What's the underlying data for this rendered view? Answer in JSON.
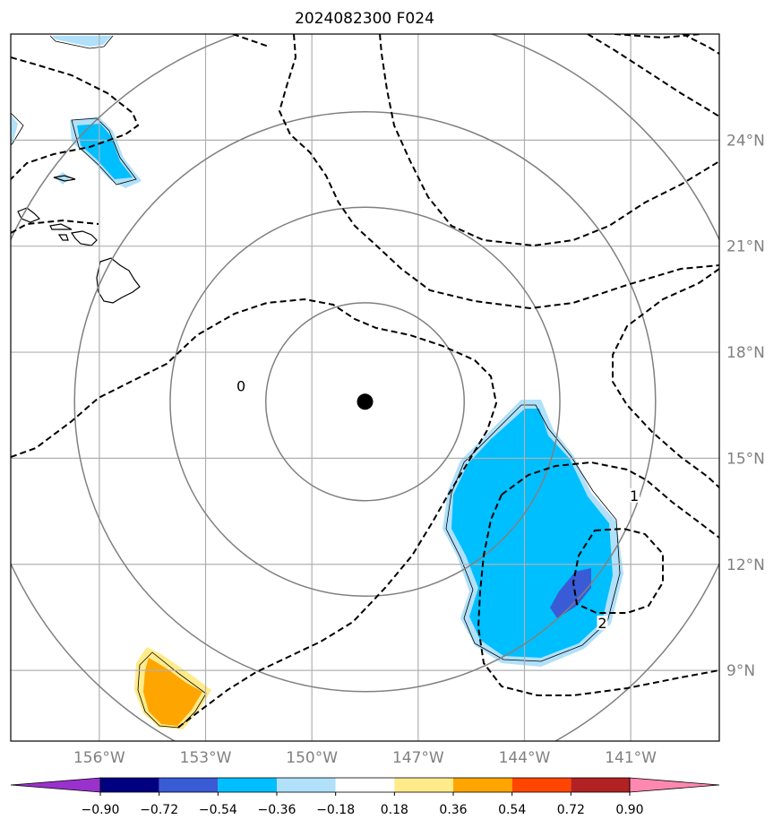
{
  "chart_data": {
    "type": "contour_map",
    "title": "2024082300 F024",
    "projection": "lat-lon",
    "xlim": [
      -158.5,
      -138.5
    ],
    "ylim": [
      7.0,
      27.0
    ],
    "lon_ticks": [
      -156,
      -153,
      -150,
      -147,
      -144,
      -141
    ],
    "lon_tick_labels": [
      "156°W",
      "153°W",
      "150°W",
      "147°W",
      "144°W",
      "141°W"
    ],
    "lat_ticks": [
      9,
      12,
      15,
      18,
      21,
      24
    ],
    "lat_tick_labels": [
      "9°N",
      "12°N",
      "15°N",
      "18°N",
      "21°N",
      "24°N"
    ],
    "grid": true,
    "center": {
      "lon": -148.5,
      "lat": 16.6
    },
    "range_rings_deg": [
      2.8,
      5.5,
      8.2,
      11.0
    ],
    "contour_labels": [
      {
        "text": "0",
        "lon": -152.0,
        "lat": 17.0
      },
      {
        "text": "1",
        "lon": -140.9,
        "lat": 13.9
      },
      {
        "text": "2",
        "lon": -141.8,
        "lat": 10.3
      }
    ],
    "colorbar": {
      "levels": [
        -0.9,
        -0.72,
        -0.54,
        -0.36,
        -0.18,
        0.18,
        0.36,
        0.54,
        0.72,
        0.9
      ],
      "tick_labels": [
        "−0.90",
        "−0.72",
        "−0.54",
        "−0.36",
        "−0.18",
        "0.18",
        "0.36",
        "0.54",
        "0.72",
        "0.90"
      ],
      "colors": [
        "#9932cc",
        "#000080",
        "#3a5bd6",
        "#00bfff",
        "#b0e0fa",
        "#ffffff",
        "#ffeb8a",
        "#ffa500",
        "#ff4500",
        "#b22222",
        "#ff88b0"
      ],
      "extend": "both"
    }
  }
}
